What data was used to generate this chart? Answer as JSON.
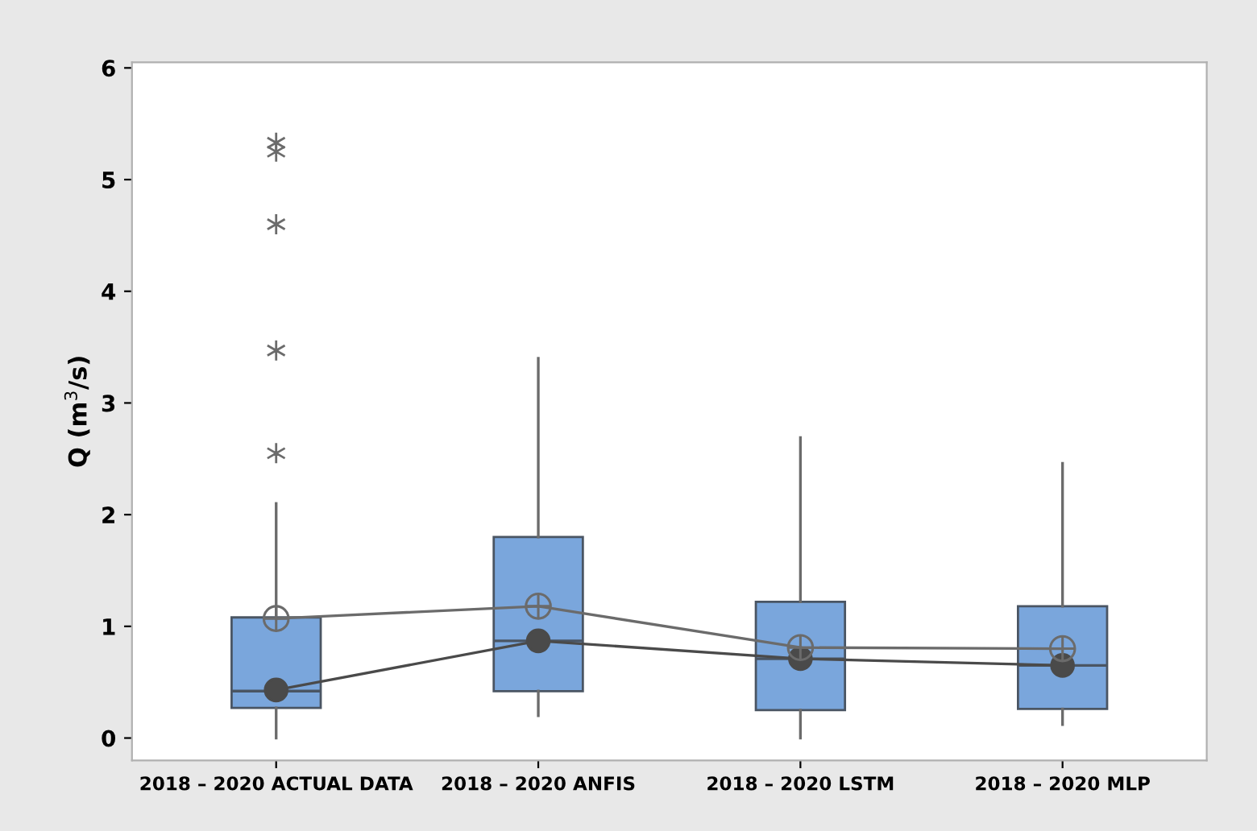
{
  "chart_data": {
    "type": "box",
    "ylabel": "Q (m$^{3}$/s)",
    "categories": [
      "2018 – 2020 ACTUAL DATA",
      "2018 – 2020 ANFIS",
      "2018 – 2020 LSTM",
      "2018 – 2020 MLP"
    ],
    "color": "#7aa6dc",
    "boxes": [
      {
        "low": 0,
        "q1": 0.27,
        "median": 0.42,
        "q3": 1.08,
        "high": 2.1,
        "outliers": [
          2.55,
          3.47,
          4.6,
          5.25,
          5.33
        ]
      },
      {
        "low": 0.2,
        "q1": 0.42,
        "median": 0.87,
        "q3": 1.8,
        "high": 3.4
      },
      {
        "low": 0,
        "q1": 0.25,
        "median": 0.71,
        "q3": 1.22,
        "high": 2.69
      },
      {
        "low": 0.12,
        "q1": 0.26,
        "median": 0.65,
        "q3": 1.18,
        "high": 2.46
      }
    ],
    "series": [
      {
        "type": "line",
        "color": "#6b6b6b",
        "marker": "circle",
        "values": [
          1.07,
          1.18,
          0.81,
          0.8
        ]
      },
      {
        "type": "line",
        "color": "#4a4a4a",
        "marker": "circle",
        "values": [
          0.43,
          0.87,
          0.71,
          0.65
        ]
      }
    ],
    "ylim": [
      -0.2,
      6.05
    ],
    "yticks": [
      0,
      1,
      2,
      3,
      4,
      5,
      6
    ],
    "grid": false,
    "legend": false
  }
}
